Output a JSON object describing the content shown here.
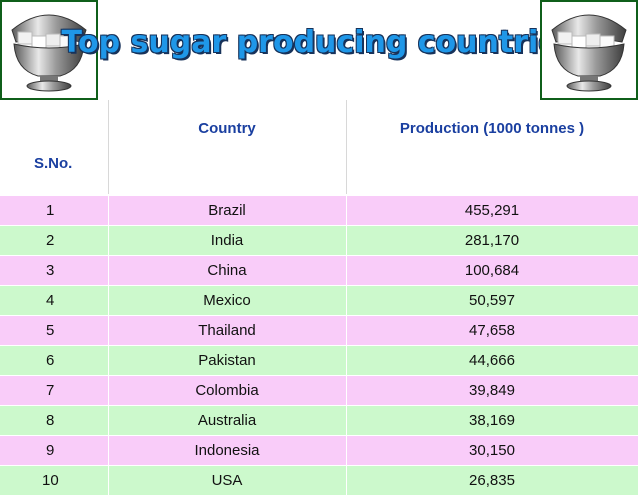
{
  "title": "Top sugar producing countries",
  "colors": {
    "title": "#1f97e8",
    "header_text": "#1a3fa0",
    "row_pink": "#f9ccf9",
    "row_green": "#ccf9cc",
    "frame": "#0f5f1a"
  },
  "icons": {
    "left": "sugar-bowl-icon",
    "right": "sugar-bowl-icon"
  },
  "table": {
    "headers": [
      "S.No.",
      "Country",
      "Production (1000 tonnes )"
    ],
    "rows": [
      [
        "1",
        "Brazil",
        "455,291"
      ],
      [
        "2",
        "India",
        "281,170"
      ],
      [
        "3",
        "China",
        "100,684"
      ],
      [
        "4",
        "Mexico",
        "50,597"
      ],
      [
        "5",
        "Thailand",
        "47,658"
      ],
      [
        "6",
        "Pakistan",
        "44,666"
      ],
      [
        "7",
        "Colombia",
        "39,849"
      ],
      [
        "8",
        "Australia",
        "38,169"
      ],
      [
        "9",
        "Indonesia",
        "30,150"
      ],
      [
        "10",
        "USA",
        "26,835"
      ]
    ]
  }
}
